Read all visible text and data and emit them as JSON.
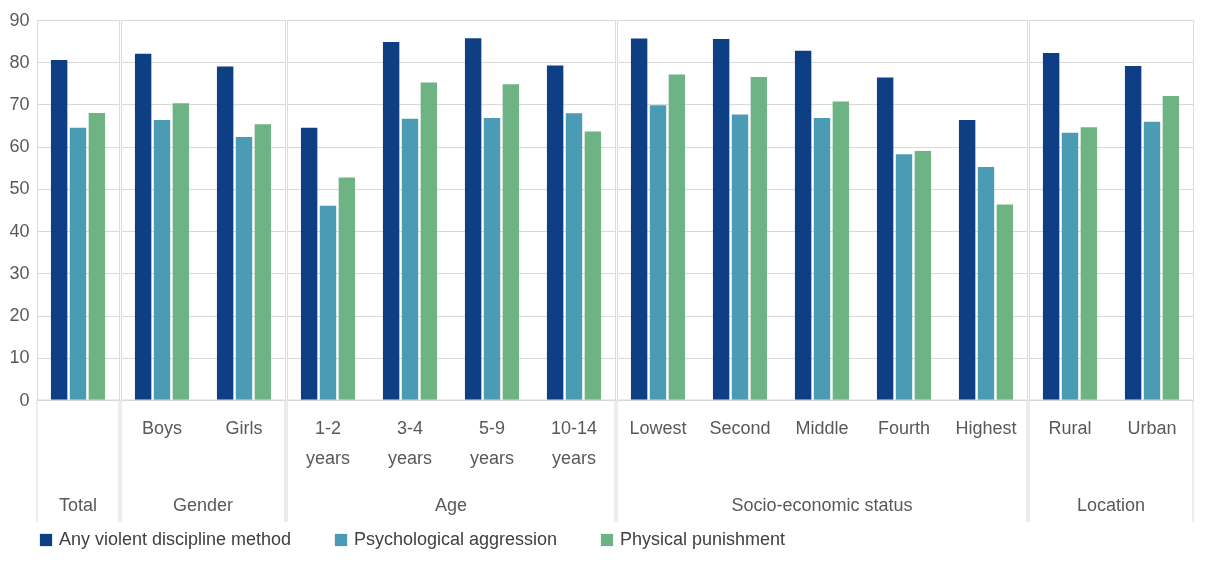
{
  "chart_data": [
    {
      "type": "bar",
      "xlabel": "Total",
      "categories": [
        null
      ],
      "series": [
        {
          "name": "Any violent discipline method",
          "color": "#0e3f84",
          "values": [
            80.5
          ]
        },
        {
          "name": "Psychological aggression",
          "color": "#4a9bb3",
          "values": [
            64.5
          ]
        },
        {
          "name": "Physical punishment",
          "color": "#6eb383",
          "values": [
            68
          ]
        }
      ],
      "ylim": [
        0,
        90
      ],
      "yticks": [
        0,
        10,
        20,
        30,
        40,
        50,
        60,
        70,
        80,
        90
      ],
      "grid": "y",
      "legend": "bottom"
    },
    {
      "type": "bar",
      "xlabel": "Gender",
      "categories": [
        "Boys",
        "Girls"
      ],
      "series": [
        {
          "name": "Any violent discipline method",
          "color": "#0e3f84",
          "values": [
            82,
            79
          ]
        },
        {
          "name": "Psychological aggression",
          "color": "#4a9bb3",
          "values": [
            66.3,
            62.3
          ]
        },
        {
          "name": "Physical punishment",
          "color": "#6eb383",
          "values": [
            70.3,
            65.3
          ]
        }
      ],
      "ylim": [
        0,
        90
      ],
      "yticks": [
        0,
        10,
        20,
        30,
        40,
        50,
        60,
        70,
        80,
        90
      ],
      "grid": "y",
      "legend": "bottom",
      "tick_labels": "x"
    },
    {
      "type": "bar",
      "xlabel": "Age",
      "categories": [
        "1-2 years",
        "3-4 years",
        "5-9 years",
        "10-14 years"
      ],
      "series": [
        {
          "name": "Any violent discipline method",
          "color": "#0e3f84",
          "values": [
            64.5,
            84.8,
            85.7,
            79.2
          ]
        },
        {
          "name": "Psychological aggression",
          "color": "#4a9bb3",
          "values": [
            46,
            66.6,
            66.8,
            67.9
          ]
        },
        {
          "name": "Physical punishment",
          "color": "#6eb383",
          "values": [
            52.7,
            75.2,
            74.8,
            63.6
          ]
        }
      ],
      "ylim": [
        0,
        90
      ],
      "yticks": [
        0,
        10,
        20,
        30,
        40,
        50,
        60,
        70,
        80,
        90
      ],
      "grid": "y",
      "legend": "bottom",
      "tick_labels": "x"
    },
    {
      "type": "bar",
      "xlabel": "Socio-economic status",
      "categories": [
        "Lowest",
        "Second",
        "Middle",
        "Fourth",
        "Highest"
      ],
      "series": [
        {
          "name": "Any violent discipline method",
          "color": "#0e3f84",
          "values": [
            85.6,
            85.5,
            82.7,
            76.4,
            66.3
          ]
        },
        {
          "name": "Psychological aggression",
          "color": "#4a9bb3",
          "values": [
            69.8,
            67.6,
            66.8,
            58.2,
            55.2
          ]
        },
        {
          "name": "Physical punishment",
          "color": "#6eb383",
          "values": [
            77.1,
            76.5,
            70.7,
            59,
            46.3
          ]
        }
      ],
      "ylim": [
        0,
        90
      ],
      "yticks": [
        0,
        10,
        20,
        30,
        40,
        50,
        60,
        70,
        80,
        90
      ],
      "grid": "y",
      "legend": "bottom",
      "tick_labels": "x"
    },
    {
      "type": "bar",
      "xlabel": "Location",
      "categories": [
        "Rural",
        "Urban"
      ],
      "series": [
        {
          "name": "Any violent discipline method",
          "color": "#0e3f84",
          "values": [
            82.2,
            79.1
          ]
        },
        {
          "name": "Psychological aggression",
          "color": "#4a9bb3",
          "values": [
            63.3,
            65.9
          ]
        },
        {
          "name": "Physical punishment",
          "color": "#6eb383",
          "values": [
            64.6,
            72
          ]
        }
      ],
      "ylim": [
        0,
        90
      ],
      "yticks": [
        0,
        10,
        20,
        30,
        40,
        50,
        60,
        70,
        80,
        90
      ],
      "grid": "y",
      "legend": "bottom",
      "tick_labels": "x"
    }
  ]
}
